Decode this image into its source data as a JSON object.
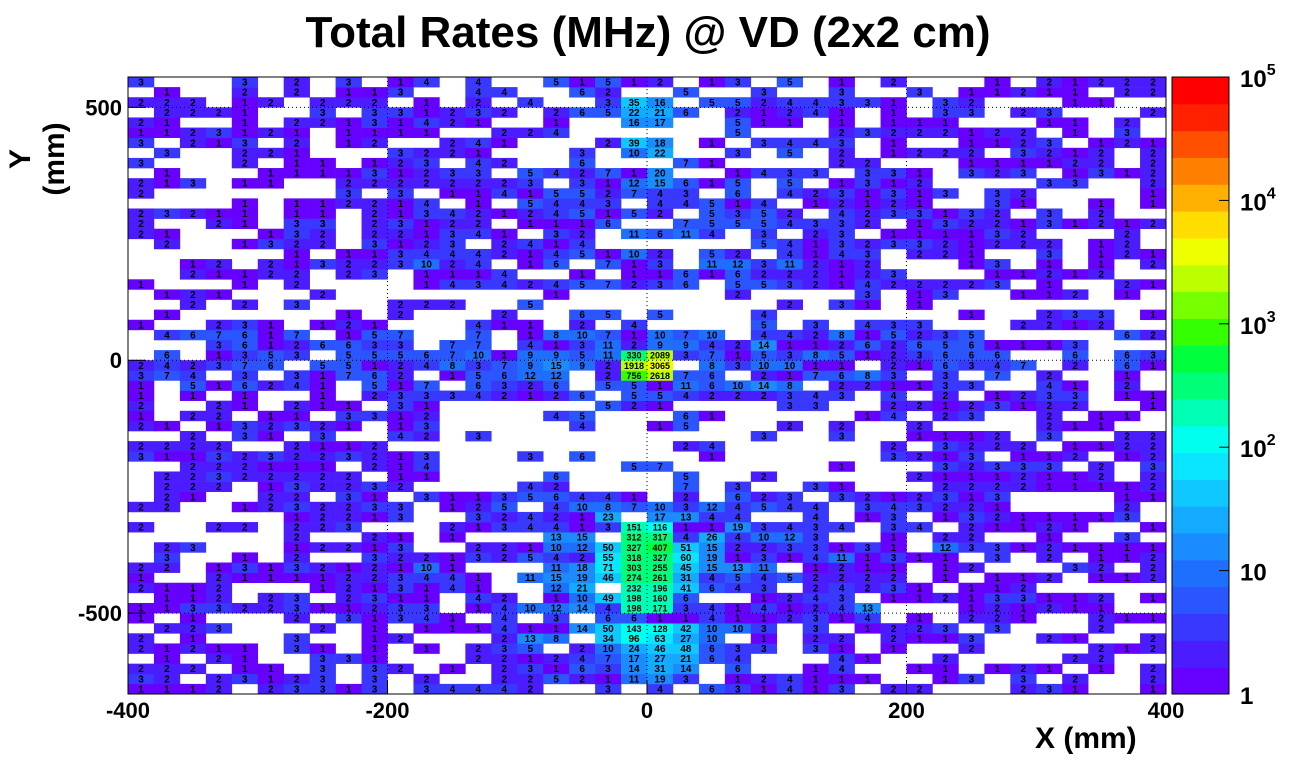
{
  "chart_data": {
    "type": "heatmap",
    "title": "Total Rates (MHz) @ VD (2x2 cm)",
    "xlabel": "X (mm)",
    "ylabel": "Y (mm)",
    "xlim": [
      -400,
      400
    ],
    "ylim": [
      -660,
      560
    ],
    "bin_size_mm": 20,
    "x_ticks": [
      "-400",
      "-200",
      "0",
      "200",
      "400"
    ],
    "y_ticks": [
      "500",
      "0",
      "-500"
    ],
    "colorbar": {
      "scale": "log",
      "range": [
        1,
        100000
      ],
      "tick_labels": [
        {
          "base": "1",
          "exp": ""
        },
        {
          "base": "10",
          "exp": ""
        },
        {
          "base": "10",
          "exp": "2"
        },
        {
          "base": "10",
          "exp": "3"
        },
        {
          "base": "10",
          "exp": "4"
        },
        {
          "base": "10",
          "exp": "5"
        }
      ],
      "colors": [
        "#6600ff",
        "#4a1cff",
        "#3838ff",
        "#2a55ff",
        "#1f6fff",
        "#1a8cff",
        "#14aaff",
        "#0fc8ff",
        "#0ae6ff",
        "#00ffee",
        "#00ffb4",
        "#00ff78",
        "#00ff3c",
        "#33ff00",
        "#77ff00",
        "#bbff00",
        "#eeff00",
        "#ffdd00",
        "#ffb000",
        "#ff8000",
        "#ff5000",
        "#ff2000",
        "#ff0000"
      ]
    },
    "grid": true,
    "hot_cells": [
      {
        "x": -10,
        "y": 10,
        "value": 330
      },
      {
        "x": 10,
        "y": 10,
        "value": 2089
      },
      {
        "x": -10,
        "y": -10,
        "value": 1918
      },
      {
        "x": 10,
        "y": -10,
        "value": 3065
      },
      {
        "x": -10,
        "y": -30,
        "value": 756
      },
      {
        "x": 10,
        "y": -30,
        "value": 2618
      },
      {
        "x": -10,
        "y": -370,
        "value": 327
      },
      {
        "x": 10,
        "y": -370,
        "value": 407
      },
      {
        "x": -10,
        "y": -390,
        "value": 318
      },
      {
        "x": 10,
        "y": -390,
        "value": 327
      },
      {
        "x": -10,
        "y": -410,
        "value": 303
      },
      {
        "x": 10,
        "y": -410,
        "value": 255
      },
      {
        "x": -10,
        "y": -430,
        "value": 274
      },
      {
        "x": 10,
        "y": -430,
        "value": 261
      },
      {
        "x": -10,
        "y": -450,
        "value": 232
      },
      {
        "x": 10,
        "y": -450,
        "value": 196
      },
      {
        "x": -10,
        "y": -470,
        "value": 198
      },
      {
        "x": 10,
        "y": -470,
        "value": 160
      },
      {
        "x": -10,
        "y": -490,
        "value": 198
      },
      {
        "x": 10,
        "y": -490,
        "value": 171
      },
      {
        "x": -10,
        "y": -530,
        "value": 143
      },
      {
        "x": 10,
        "y": -530,
        "value": 128
      },
      {
        "x": -10,
        "y": -350,
        "value": 312
      },
      {
        "x": 10,
        "y": -350,
        "value": 317
      },
      {
        "x": -10,
        "y": -330,
        "value": 151
      },
      {
        "x": 10,
        "y": -330,
        "value": 116
      },
      {
        "x": -30,
        "y": -410,
        "value": 71
      },
      {
        "x": -30,
        "y": -430,
        "value": 46
      },
      {
        "x": -30,
        "y": -370,
        "value": 50
      },
      {
        "x": -30,
        "y": -390,
        "value": 55
      },
      {
        "x": -30,
        "y": -530,
        "value": 50
      },
      {
        "x": -30,
        "y": -550,
        "value": 34
      },
      {
        "x": -30,
        "y": -470,
        "value": 49
      },
      {
        "x": 30,
        "y": -370,
        "value": 51
      },
      {
        "x": 30,
        "y": -390,
        "value": 60
      },
      {
        "x": 30,
        "y": -410,
        "value": 45
      },
      {
        "x": 30,
        "y": -430,
        "value": 31
      },
      {
        "x": 30,
        "y": -450,
        "value": 41
      },
      {
        "x": 30,
        "y": -530,
        "value": 42
      },
      {
        "x": -10,
        "y": 510,
        "value": 35
      },
      {
        "x": 10,
        "y": 510,
        "value": 16
      },
      {
        "x": -10,
        "y": 490,
        "value": 22
      },
      {
        "x": 10,
        "y": 490,
        "value": 21
      },
      {
        "x": -10,
        "y": 430,
        "value": 39
      },
      {
        "x": 10,
        "y": 430,
        "value": 18
      },
      {
        "x": -10,
        "y": 470,
        "value": 16
      },
      {
        "x": 10,
        "y": 470,
        "value": 17
      },
      {
        "x": -10,
        "y": 410,
        "value": 10
      },
      {
        "x": 10,
        "y": 410,
        "value": 22
      },
      {
        "x": 10,
        "y": 370,
        "value": 20
      },
      {
        "x": -10,
        "y": 350,
        "value": 12
      },
      {
        "x": 10,
        "y": 350,
        "value": 15
      },
      {
        "x": -70,
        "y": -10,
        "value": 15
      },
      {
        "x": -90,
        "y": -30,
        "value": 12
      },
      {
        "x": -70,
        "y": -30,
        "value": 12
      },
      {
        "x": 90,
        "y": 30,
        "value": 14
      },
      {
        "x": 90,
        "y": -10,
        "value": 10
      },
      {
        "x": 110,
        "y": -10,
        "value": 10
      },
      {
        "x": 90,
        "y": -50,
        "value": 14
      },
      {
        "x": -130,
        "y": 10,
        "value": 10
      },
      {
        "x": 10,
        "y": -310,
        "value": 17
      },
      {
        "x": -30,
        "y": -310,
        "value": 23
      },
      {
        "x": 30,
        "y": -310,
        "value": 13
      },
      {
        "x": -50,
        "y": -290,
        "value": 10
      },
      {
        "x": -30,
        "y": -290,
        "value": 8
      },
      {
        "x": 10,
        "y": -290,
        "value": 10
      },
      {
        "x": 50,
        "y": -290,
        "value": 12
      },
      {
        "x": 70,
        "y": -330,
        "value": 19
      },
      {
        "x": 90,
        "y": -350,
        "value": 10
      },
      {
        "x": 110,
        "y": -350,
        "value": 12
      },
      {
        "x": 50,
        "y": -350,
        "value": 26
      },
      {
        "x": 50,
        "y": -370,
        "value": 15
      },
      {
        "x": 50,
        "y": -390,
        "value": 19
      },
      {
        "x": 50,
        "y": -410,
        "value": 15
      },
      {
        "x": 70,
        "y": -410,
        "value": 13
      },
      {
        "x": 90,
        "y": -410,
        "value": 11
      },
      {
        "x": -50,
        "y": -350,
        "value": 15
      },
      {
        "x": -50,
        "y": -370,
        "value": 12
      },
      {
        "x": -70,
        "y": -350,
        "value": 13
      },
      {
        "x": -70,
        "y": -370,
        "value": 10
      },
      {
        "x": -50,
        "y": -410,
        "value": 18
      },
      {
        "x": -70,
        "y": -410,
        "value": 11
      },
      {
        "x": -50,
        "y": -430,
        "value": 19
      },
      {
        "x": -70,
        "y": -430,
        "value": 15
      },
      {
        "x": -90,
        "y": -430,
        "value": 11
      },
      {
        "x": -50,
        "y": -450,
        "value": 21
      },
      {
        "x": -70,
        "y": -450,
        "value": 12
      },
      {
        "x": -50,
        "y": -470,
        "value": 10
      },
      {
        "x": -50,
        "y": -490,
        "value": 14
      },
      {
        "x": -70,
        "y": -490,
        "value": 12
      },
      {
        "x": -90,
        "y": -490,
        "value": 10
      },
      {
        "x": -50,
        "y": -530,
        "value": 14
      },
      {
        "x": -70,
        "y": -550,
        "value": 8
      },
      {
        "x": -90,
        "y": -550,
        "value": 13
      },
      {
        "x": -30,
        "y": -570,
        "value": 10
      },
      {
        "x": -10,
        "y": -570,
        "value": 24
      },
      {
        "x": 10,
        "y": -570,
        "value": 46
      },
      {
        "x": 30,
        "y": -570,
        "value": 48
      },
      {
        "x": -10,
        "y": -550,
        "value": 96
      },
      {
        "x": 10,
        "y": -550,
        "value": 63
      },
      {
        "x": 30,
        "y": -550,
        "value": 27
      },
      {
        "x": -10,
        "y": -590,
        "value": 17
      },
      {
        "x": 10,
        "y": -590,
        "value": 27
      },
      {
        "x": 30,
        "y": -590,
        "value": 21
      },
      {
        "x": -10,
        "y": -610,
        "value": 14
      },
      {
        "x": 10,
        "y": -610,
        "value": 31
      },
      {
        "x": 30,
        "y": -610,
        "value": 14
      },
      {
        "x": -10,
        "y": -630,
        "value": 11
      },
      {
        "x": 10,
        "y": -630,
        "value": 19
      },
      {
        "x": 50,
        "y": -530,
        "value": 10
      },
      {
        "x": 70,
        "y": -530,
        "value": 10
      },
      {
        "x": 50,
        "y": -550,
        "value": 10
      },
      {
        "x": -170,
        "y": -410,
        "value": 10
      },
      {
        "x": -10,
        "y": 210,
        "value": 10
      },
      {
        "x": 50,
        "y": 190,
        "value": 11
      },
      {
        "x": 110,
        "y": 190,
        "value": 11
      },
      {
        "x": 70,
        "y": 190,
        "value": 12
      },
      {
        "x": 30,
        "y": 250,
        "value": 11
      },
      {
        "x": -10,
        "y": 250,
        "value": 11
      },
      {
        "x": -170,
        "y": 190,
        "value": 10
      },
      {
        "x": 170,
        "y": -490,
        "value": 13
      },
      {
        "x": 150,
        "y": -390,
        "value": 11
      },
      {
        "x": 230,
        "y": -370,
        "value": 12
      }
    ]
  }
}
